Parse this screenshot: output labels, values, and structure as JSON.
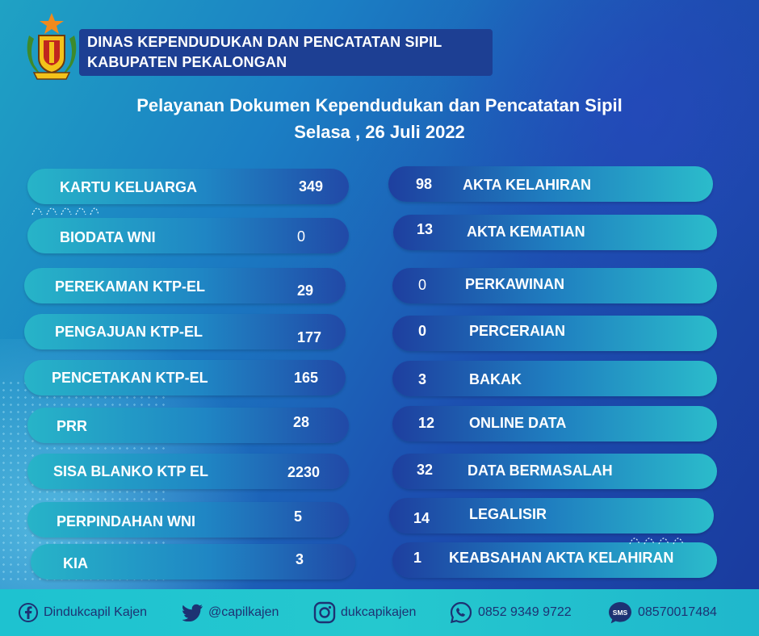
{
  "header": {
    "line1": "DINAS KEPENDUDUKAN DAN PENCATATAN SIPIL",
    "line2": "KABUPATEN PEKALONGAN",
    "logo_icon": "regency-emblem-icon"
  },
  "title": {
    "line1": "Pelayanan Dokumen Kependudukan dan Pencatatan Sipil",
    "line2": "Selasa , 26 Juli 2022"
  },
  "left_items": [
    {
      "label": "KARTU KELUARGA",
      "value": "349"
    },
    {
      "label": "BIODATA WNI",
      "value": "0"
    },
    {
      "label": "PEREKAMAN KTP-EL",
      "value": "29"
    },
    {
      "label": "PENGAJUAN KTP-EL",
      "value": "177"
    },
    {
      "label": "PENCETAKAN KTP-EL",
      "value": "165"
    },
    {
      "label": "PRR",
      "value": "28"
    },
    {
      "label": "SISA BLANKO KTP EL",
      "value": "2230"
    },
    {
      "label": "PERPINDAHAN WNI",
      "value": "5"
    },
    {
      "label": "KIA",
      "value": "3"
    }
  ],
  "right_items": [
    {
      "label": "AKTA KELAHIRAN",
      "value": "98"
    },
    {
      "label": "AKTA KEMATIAN",
      "value": "13"
    },
    {
      "label": "PERKAWINAN",
      "value": "0"
    },
    {
      "label": "PERCERAIAN",
      "value": "0"
    },
    {
      "label": "BAKAK",
      "value": "3"
    },
    {
      "label": "ONLINE DATA",
      "value": "12"
    },
    {
      "label": "DATA BERMASALAH",
      "value": "32"
    },
    {
      "label": "LEGALISIR",
      "value": "14"
    },
    {
      "label": "KEABSAHAN AKTA KELAHIRAN",
      "value": "1"
    }
  ],
  "footer": {
    "facebook": {
      "icon": "facebook-icon",
      "text": "Dindukcapil Kajen"
    },
    "twitter": {
      "icon": "twitter-icon",
      "text": "@capilkajen"
    },
    "instagram": {
      "icon": "instagram-icon",
      "text": "dukcapikajen"
    },
    "whatsapp": {
      "icon": "whatsapp-icon",
      "text": "0852 9349 9722"
    },
    "sms": {
      "icon": "sms-icon",
      "icon_text": "SMS",
      "text": "08570017484"
    }
  },
  "colors": {
    "header_box": "#1d3f93",
    "footer_bg": "#25c8cf",
    "footer_text": "#1d3273",
    "pill_teal": "#27b4c8",
    "pill_blue": "#2149a7"
  }
}
